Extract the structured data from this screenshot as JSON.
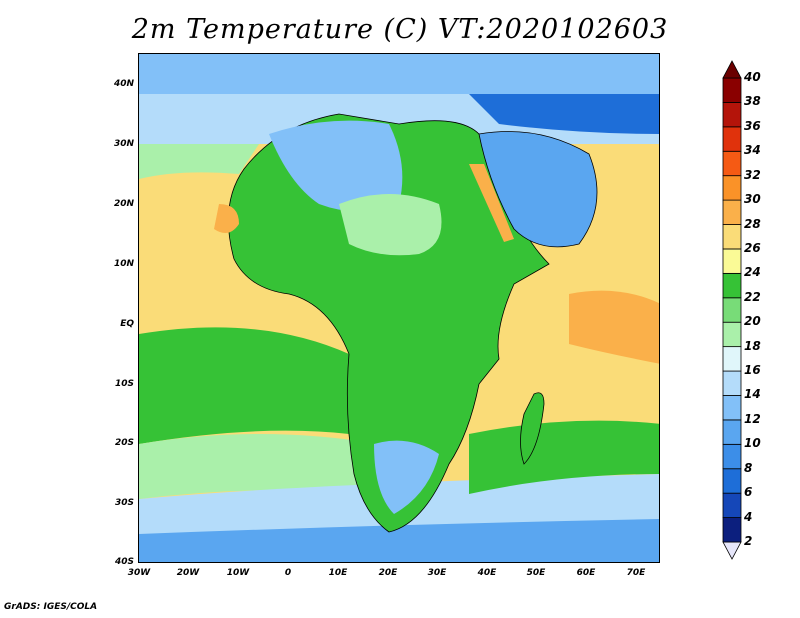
{
  "title": "2m Temperature (C) VT:2020102603",
  "credit": "GrADS: IGES/COLA",
  "lat_labels": [
    "40N",
    "30N",
    "20N",
    "10N",
    "EQ",
    "10S",
    "20S",
    "30S",
    "40S"
  ],
  "lon_labels": [
    "30W",
    "20W",
    "10W",
    "0",
    "10E",
    "20E",
    "30E",
    "40E",
    "50E",
    "60E",
    "70E"
  ],
  "colorbar": {
    "labels": [
      "2",
      "4",
      "6",
      "8",
      "10",
      "12",
      "14",
      "16",
      "18",
      "20",
      "22",
      "24",
      "26",
      "28",
      "30",
      "32",
      "34",
      "36",
      "38",
      "40"
    ],
    "colors": [
      "#e6e6fa",
      "#0c1f7e",
      "#1547b8",
      "#1e6ed8",
      "#3c8ee8",
      "#5aa6f0",
      "#82c0f8",
      "#b4dcfa",
      "#e0f6fa",
      "#aaf0aa",
      "#78dc78",
      "#36c236",
      "#fafa96",
      "#fadc78",
      "#fab04a",
      "#fa9228",
      "#f55a14",
      "#e0320c",
      "#b4140a",
      "#8a0000",
      "#6a0000"
    ]
  },
  "map_colors": {
    "ocean_cold": "#5aa6f0",
    "ocean_cool": "#b4dcfa",
    "ocean_mild": "#aaf0aa",
    "ocean_warm": "#fadc78",
    "land_green": "#36c236",
    "land_blue": "#82c0f8",
    "land_orange": "#fab04a"
  }
}
